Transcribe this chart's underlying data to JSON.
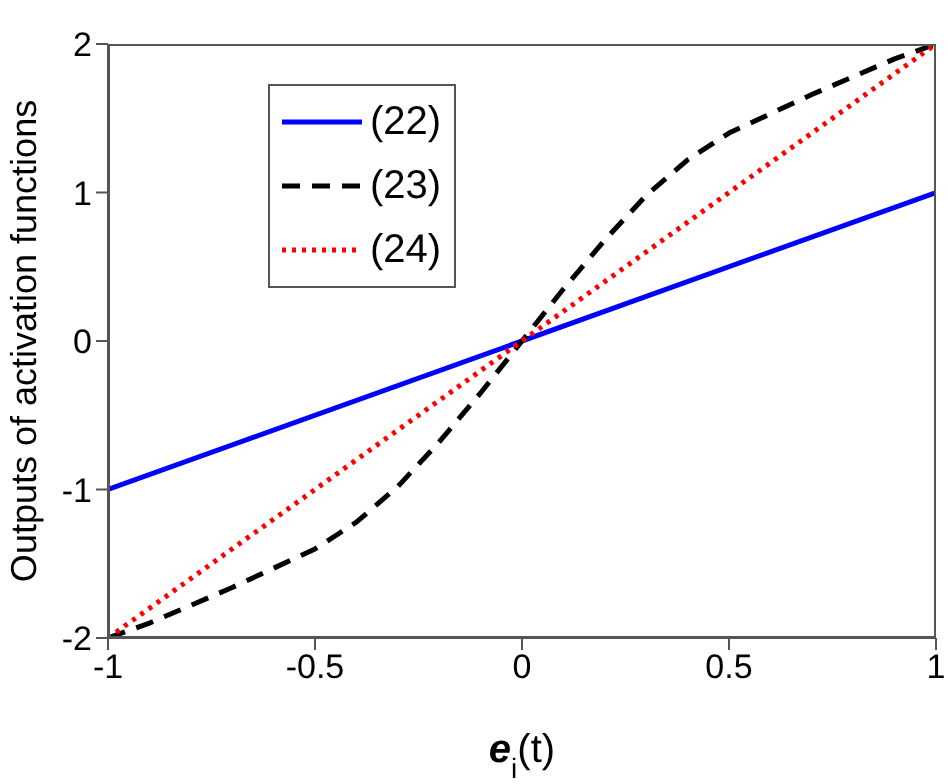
{
  "chart_data": {
    "type": "line",
    "xlabel": "e$_{i}$(t)",
    "ylabel": "Outputs of activation functions",
    "xlim": [
      -1,
      1
    ],
    "ylim": [
      -2,
      2
    ],
    "xticks": [
      -1,
      -0.5,
      0,
      0.5,
      1
    ],
    "yticks": [
      -2,
      -1,
      0,
      1,
      2
    ],
    "grid": false,
    "legend": "top left",
    "marker": "none",
    "series": [
      {
        "name": "(22)",
        "color": "#0000ff",
        "line_style": "solid",
        "x": [
          -1,
          1
        ],
        "values": [
          -1,
          1
        ]
      },
      {
        "name": "(23)",
        "color": "#000000",
        "line_style": "dashed",
        "x": [
          -1,
          -0.9,
          -0.8,
          -0.7,
          -0.6,
          -0.5,
          -0.4,
          -0.3,
          -0.2,
          -0.1,
          0,
          0.1,
          0.2,
          0.3,
          0.4,
          0.5,
          0.6,
          0.7,
          0.8,
          0.9,
          1
        ],
        "values": [
          -2,
          -1.9,
          -1.78,
          -1.66,
          -1.53,
          -1.4,
          -1.22,
          -0.98,
          -0.68,
          -0.35,
          0,
          0.35,
          0.68,
          0.98,
          1.22,
          1.4,
          1.53,
          1.66,
          1.78,
          1.9,
          2
        ]
      },
      {
        "name": "(24)",
        "color": "#ff0000",
        "line_style": "dotted",
        "x": [
          -1,
          1
        ],
        "values": [
          -2,
          2
        ]
      }
    ]
  }
}
